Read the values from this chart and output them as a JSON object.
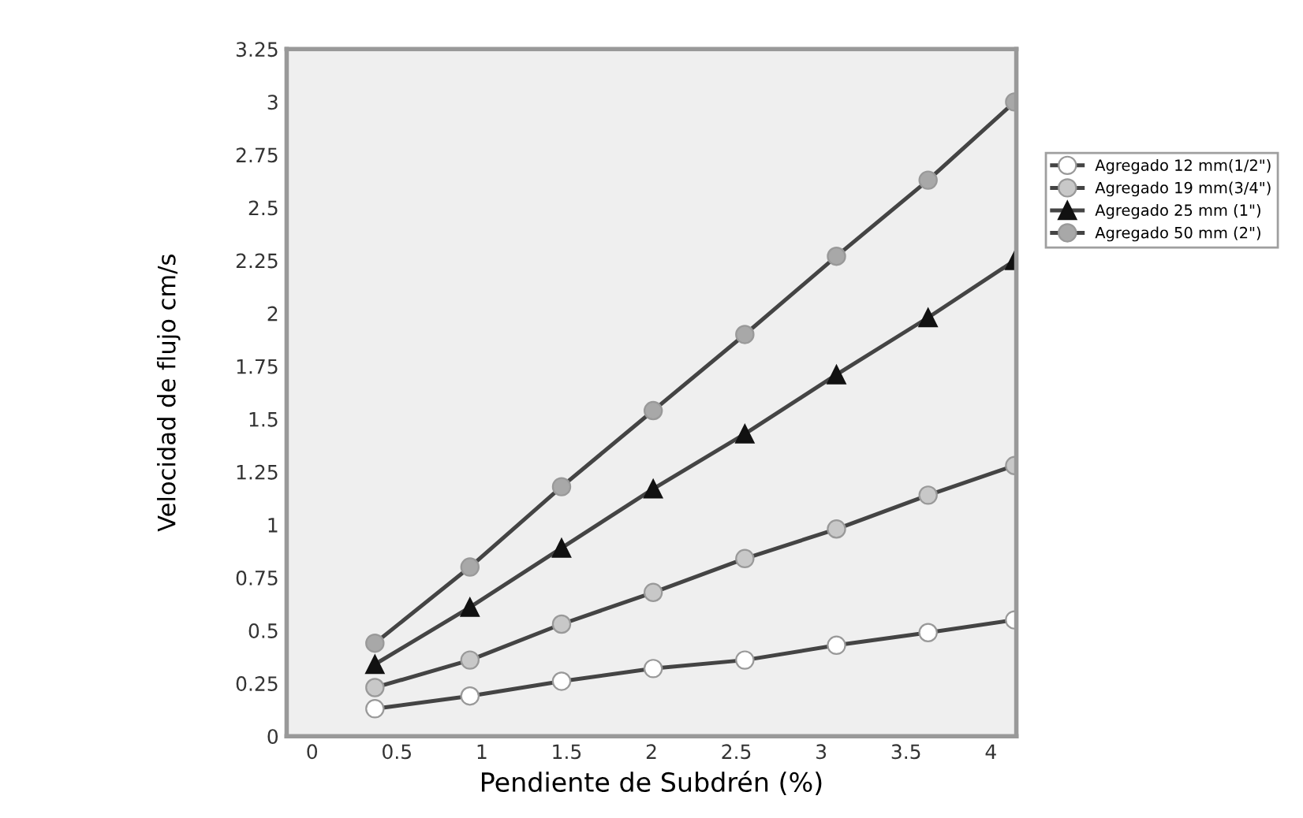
{
  "chart_data": {
    "type": "line",
    "xlabel": "Pendiente de Subdrén (%)",
    "ylabel": "Velocidad de flujo cm/s",
    "x": [
      0.37,
      0.93,
      1.47,
      2.01,
      2.55,
      3.09,
      3.63,
      4.14
    ],
    "series": [
      {
        "name": "Agregado 12 mm(1/2\")",
        "color": "#ffffff",
        "marker": "circle",
        "values": [
          0.13,
          0.19,
          0.26,
          0.32,
          0.36,
          0.43,
          0.49,
          0.55
        ]
      },
      {
        "name": "Agregado 19 mm(3/4\")",
        "color": "#c8c8c8",
        "marker": "circle",
        "values": [
          0.23,
          0.36,
          0.53,
          0.68,
          0.84,
          0.98,
          1.14,
          1.28
        ]
      },
      {
        "name": "Agregado 25 mm (1\")",
        "color": "#111111",
        "marker": "triangle",
        "values": [
          0.34,
          0.61,
          0.89,
          1.17,
          1.43,
          1.71,
          1.98,
          2.25
        ]
      },
      {
        "name": "Agregado 50 mm (2\")",
        "color": "#a8a8a8",
        "marker": "circle",
        "values": [
          0.44,
          0.8,
          1.18,
          1.54,
          1.9,
          2.27,
          2.63,
          3.0
        ]
      }
    ],
    "xlim": [
      -0.15,
      4.15
    ],
    "ylim": [
      0,
      3.25
    ],
    "xticks": [
      0,
      0.5,
      1,
      1.5,
      2,
      2.5,
      3,
      3.5,
      4
    ],
    "yticks": [
      0,
      0.25,
      0.5,
      0.75,
      1,
      1.25,
      1.5,
      1.75,
      2,
      2.25,
      2.5,
      2.75,
      3,
      3.25
    ],
    "legend": "right",
    "line_style": "solid"
  }
}
